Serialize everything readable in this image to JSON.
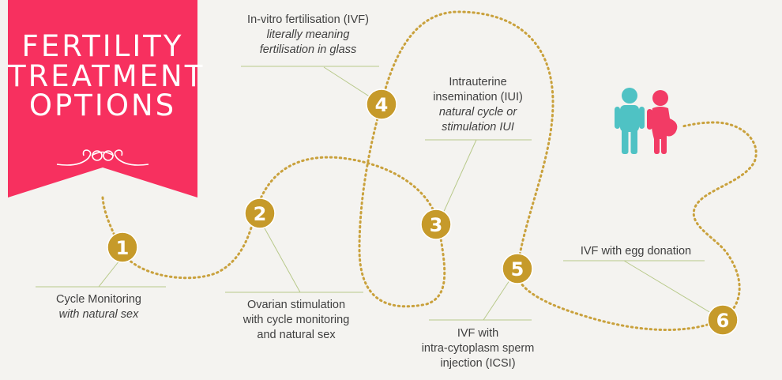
{
  "banner": {
    "title_line1": "FERTILITY",
    "title_line2": "TREATMENT",
    "title_line3": "OPTIONS",
    "color": "#f7305f",
    "ornament_icon": "scroll-ornament-icon"
  },
  "colors": {
    "step_badge": "#c69a2a",
    "path": "#c9a13c",
    "man": "#4fc2c4",
    "woman": "#f23b65",
    "background": "#f4f3f0"
  },
  "couple_icon": "couple-icon",
  "steps": [
    {
      "number": "1",
      "line1": "Cycle Monitoring",
      "line2_italic": "with natural sex"
    },
    {
      "number": "2",
      "line1": "Ovarian stimulation",
      "line2": "with cycle monitoring",
      "line3": "and natural sex"
    },
    {
      "number": "3",
      "line1": "Intrauterine",
      "line2": "insemination (IUI)",
      "line3_italic": "natural cycle or",
      "line4_italic": "stimulation IUI"
    },
    {
      "number": "4",
      "line1": "In-vitro fertilisation (IVF)",
      "line2_italic": "literally meaning",
      "line3_italic": "fertilisation in glass"
    },
    {
      "number": "5",
      "line1": "IVF with",
      "line2": "intra-cytoplasm sperm",
      "line3": "injection (ICSI)"
    },
    {
      "number": "6",
      "line1": "IVF with egg donation"
    }
  ]
}
